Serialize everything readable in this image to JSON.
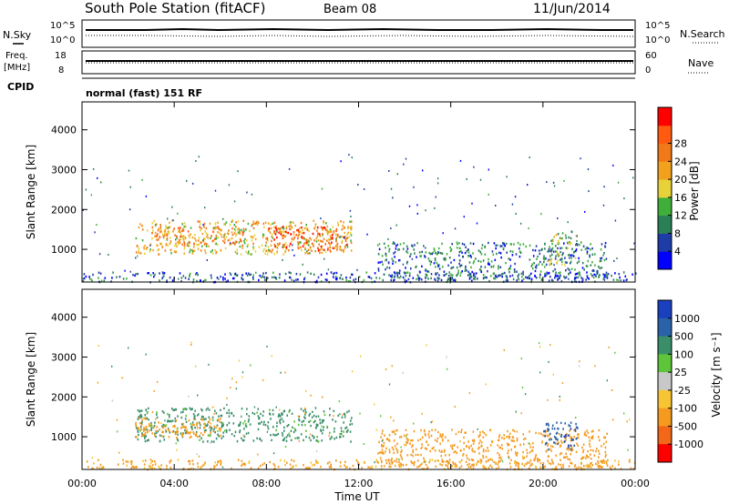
{
  "header": {
    "station": "South Pole Station (fitACF)",
    "beam": "Beam 08",
    "date": "11/Jun/2014"
  },
  "panel_labels": {
    "nsky": "N.Sky",
    "nsearch": "N.Search",
    "freq_line1": "Freq.",
    "freq_line2": "[MHz]",
    "nave": "Nave",
    "cpid": "CPID",
    "mode": "normal (fast) 151 RF",
    "nsky_ticks": [
      "10^5",
      "10^0"
    ],
    "nsearch_ticks": [
      "10^5",
      "10^0"
    ],
    "freq_ticks": [
      "18",
      "8"
    ],
    "nave_ticks": [
      "60",
      "0"
    ]
  },
  "colors": {
    "power": [
      "#0000ff",
      "#1e3ca8",
      "#2a7f56",
      "#3fae3a",
      "#e8d23a",
      "#f2a11e",
      "#f07a18",
      "#ff5a10",
      "#ff0000"
    ],
    "velocity": [
      "#1a3fbf",
      "#2a62a8",
      "#3a8e6a",
      "#5ec43a",
      "#c8c8c8",
      "#f7c533",
      "#f49a1e",
      "#f26818",
      "#ff0000"
    ]
  },
  "chart_data": [
    {
      "type": "heatmap",
      "name": "power",
      "ylabel": "Slant Range [km]",
      "xlabel": "",
      "x_ticks": [
        "00:00",
        "04:00",
        "08:00",
        "12:00",
        "16:00",
        "20:00",
        "00:00"
      ],
      "y_ticks": [
        "1000",
        "2000",
        "3000",
        "4000"
      ],
      "xlim_hours": [
        0,
        24
      ],
      "ylim_km": [
        180,
        4700
      ],
      "colorbar_label": "Power [dB]",
      "colorbar_ticks": [
        "4",
        "8",
        "12",
        "16",
        "20",
        "24",
        "28"
      ],
      "clim": [
        0,
        32
      ],
      "regions": [
        {
          "t0": 2.3,
          "t1": 11.7,
          "r0": 900,
          "r1": 1750,
          "v": 18
        },
        {
          "t0": 8.0,
          "t1": 11.5,
          "r0": 1000,
          "r1": 1600,
          "v": 26
        },
        {
          "t0": 3.0,
          "t1": 7.0,
          "r0": 1100,
          "r1": 1600,
          "v": 22
        },
        {
          "t0": 12.8,
          "t1": 22.8,
          "r0": 250,
          "r1": 1200,
          "v": 8
        },
        {
          "t0": 20.0,
          "t1": 21.5,
          "r0": 600,
          "r1": 1500,
          "v": 13
        },
        {
          "t0": 0.0,
          "t1": 24.0,
          "r0": 200,
          "r1": 450,
          "v": 6
        }
      ]
    },
    {
      "type": "heatmap",
      "name": "velocity",
      "ylabel": "Slant Range [km]",
      "xlabel": "Time UT",
      "x_ticks": [
        "00:00",
        "04:00",
        "08:00",
        "12:00",
        "16:00",
        "20:00",
        "00:00"
      ],
      "y_ticks": [
        "1000",
        "2000",
        "3000",
        "4000"
      ],
      "xlim_hours": [
        0,
        24
      ],
      "ylim_km": [
        180,
        4700
      ],
      "colorbar_label": "Velocity [m s⁻¹]",
      "colorbar_ticks": [
        "1000",
        "500",
        "100",
        "25",
        "-25",
        "-100",
        "-500",
        "-1000"
      ],
      "regions": [
        {
          "t0": 2.3,
          "t1": 11.7,
          "r0": 900,
          "r1": 1750,
          "v": 100
        },
        {
          "t0": 2.3,
          "t1": 6.0,
          "r0": 1000,
          "r1": 1500,
          "v": -200
        },
        {
          "t0": 12.8,
          "t1": 22.8,
          "r0": 250,
          "r1": 1200,
          "v": -150
        },
        {
          "t0": 20.0,
          "t1": 21.5,
          "r0": 700,
          "r1": 1400,
          "v": 600
        },
        {
          "t0": 0.0,
          "t1": 24.0,
          "r0": 200,
          "r1": 450,
          "v": -80
        }
      ]
    }
  ]
}
